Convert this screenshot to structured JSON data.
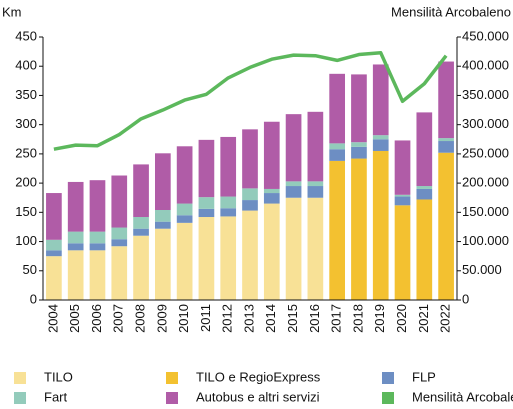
{
  "chart_data": {
    "type": "bar",
    "y_label": "Km",
    "y2_label": "Mensilità Arcobaleno",
    "categories": [
      "2004",
      "2005",
      "2006",
      "2007",
      "2008",
      "2009",
      "2010",
      "2011",
      "2012",
      "2013",
      "2014",
      "2015",
      "2016",
      "2017",
      "2018",
      "2019",
      "2020",
      "2021",
      "2022"
    ],
    "ylim": [
      0,
      450
    ],
    "yticks": [
      0,
      50,
      100,
      150,
      200,
      250,
      300,
      350,
      400,
      450
    ],
    "y2lim": [
      0,
      450000
    ],
    "y2ticks": [
      {
        "value": 0,
        "label": "0"
      },
      {
        "value": 50000,
        "label": "50.000"
      },
      {
        "value": 100000,
        "label": "100.000"
      },
      {
        "value": 150000,
        "label": "150.000"
      },
      {
        "value": 200000,
        "label": "200.000"
      },
      {
        "value": 250000,
        "label": "250.000"
      },
      {
        "value": 300000,
        "label": "300.000"
      },
      {
        "value": 350000,
        "label": "350.000"
      },
      {
        "value": 400000,
        "label": "400.000"
      },
      {
        "value": 450000,
        "label": "450.000"
      }
    ],
    "series": [
      {
        "name": "TILO",
        "color": "#f8e196",
        "values": [
          75,
          85,
          85,
          92,
          110,
          122,
          132,
          142,
          143,
          153,
          165,
          175,
          175,
          null,
          null,
          null,
          null,
          null,
          null
        ]
      },
      {
        "name": "TILO e RegioExpress",
        "color": "#f3c130",
        "values": [
          null,
          null,
          null,
          null,
          null,
          null,
          null,
          null,
          null,
          null,
          null,
          null,
          null,
          238,
          242,
          255,
          162,
          172,
          252
        ]
      },
      {
        "name": "FLP",
        "color": "#6d8ec3",
        "values": [
          10,
          12,
          12,
          12,
          12,
          12,
          13,
          14,
          14,
          18,
          18,
          20,
          20,
          20,
          20,
          20,
          15,
          18,
          20
        ]
      },
      {
        "name": "Fart",
        "color": "#93cbbb",
        "values": [
          18,
          20,
          20,
          20,
          20,
          20,
          20,
          20,
          20,
          20,
          7,
          8,
          8,
          10,
          8,
          7,
          3,
          5,
          5
        ]
      },
      {
        "name": "Autobus e altri servizi",
        "color": "#b05ca7",
        "values": [
          80,
          85,
          88,
          89,
          90,
          97,
          98,
          98,
          102,
          101,
          115,
          115,
          119,
          119,
          116,
          121,
          93,
          126,
          131
        ]
      },
      {
        "name": "Mensilità Arcobaleno",
        "color": "#5cb85c",
        "type": "line",
        "axis": "y2",
        "values": [
          258000,
          265000,
          264000,
          283000,
          310000,
          325000,
          342000,
          352000,
          380000,
          398000,
          412000,
          419000,
          418000,
          410000,
          420000,
          423000,
          340000,
          370000,
          418000
        ]
      }
    ]
  }
}
